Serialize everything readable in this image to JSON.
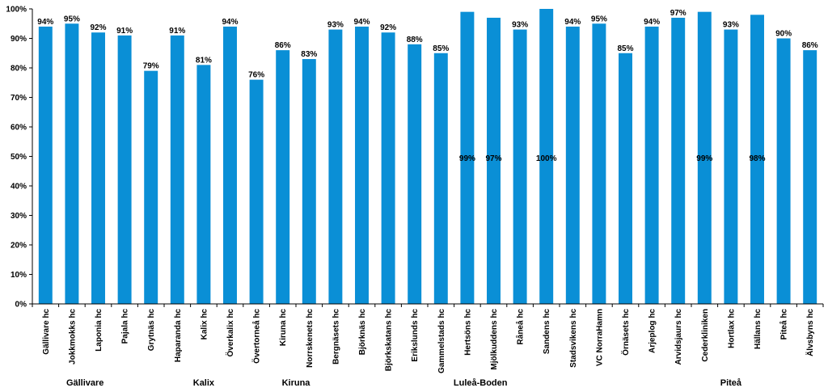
{
  "chart_data": {
    "type": "bar",
    "title": "",
    "xlabel": "",
    "ylabel": "",
    "ylim": [
      0,
      100
    ],
    "yticks": [
      "0%",
      "10%",
      "20%",
      "30%",
      "40%",
      "50%",
      "60%",
      "70%",
      "80%",
      "90%",
      "100%"
    ],
    "grid": false,
    "bar_color": "#0a8fd6",
    "categories": [
      "Gällivare hc",
      "Jokkmokks hc",
      "Laponia hc",
      "Pajala hc",
      "Grytnäs hc",
      "Haparanda hc",
      "Kalix hc",
      "Överkalix hc",
      "Övertorneå hc",
      "Kiruna hc",
      "Norrskenets hc",
      "Bergnäsets hc",
      "Björknäs hc",
      "Björkskatans hc",
      "Erikslunds hc",
      "Gammelstads hc",
      "Hertsöns hc",
      "Mjölkuddens hc",
      "Råneå hc",
      "Sandens hc",
      "Stadsvikens hc",
      "VC NorraHamn",
      "Örnäsets hc",
      "Arjeplog hc",
      "Arvidsjaurs hc",
      "Cederkliniken",
      "Hortlax hc",
      "Hällans hc",
      "Piteå hc",
      "Älvsbyns hc"
    ],
    "values": [
      94,
      95,
      92,
      91,
      79,
      91,
      81,
      94,
      76,
      86,
      83,
      93,
      94,
      92,
      88,
      85,
      99,
      97,
      93,
      100,
      94,
      95,
      85,
      94,
      97,
      99,
      93,
      98,
      90,
      86
    ],
    "value_labels": [
      "94%",
      "95%",
      "92%",
      "91%",
      "79%",
      "91%",
      "81%",
      "94%",
      "76%",
      "86%",
      "83%",
      "93%",
      "94%",
      "92%",
      "88%",
      "85%",
      "99%",
      "97%",
      "93%",
      "100%",
      "94%",
      "95%",
      "85%",
      "94%",
      "97%",
      "99%",
      "93%",
      "98%",
      "90%",
      "86%"
    ],
    "inside_labels": [
      16,
      17,
      19,
      25,
      27
    ],
    "groups": [
      {
        "name": "Gällivare",
        "start": 0,
        "end": 3
      },
      {
        "name": "Kalix",
        "start": 4,
        "end": 8
      },
      {
        "name": "Kiruna",
        "start": 9,
        "end": 10
      },
      {
        "name": "Luleå-Boden",
        "start": 11,
        "end": 22
      },
      {
        "name": "Piteå",
        "start": 23,
        "end": 29
      }
    ]
  }
}
